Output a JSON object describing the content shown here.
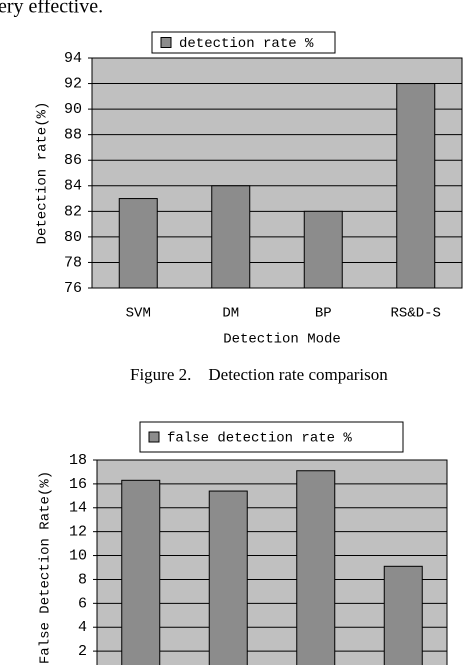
{
  "text_fragment": "ery effective.",
  "captions": [
    "Figure 2.    Detection rate comparison"
  ],
  "chart_data": [
    {
      "type": "bar",
      "xlabel": "Detection Mode",
      "ylabel": "Detection rate(%)",
      "categories": [
        "SVM",
        "DM",
        "BP",
        "RS&D-S"
      ],
      "series": [
        {
          "name": "detection rate %",
          "color": "#8c8c8c",
          "values": [
            83,
            84,
            82,
            92
          ]
        }
      ],
      "ylim": [
        76,
        94
      ],
      "yticks": [
        76,
        78,
        80,
        82,
        84,
        86,
        88,
        90,
        92,
        94
      ],
      "grid": true,
      "plot_background": "#c0c0c0"
    },
    {
      "type": "bar",
      "ylabel": "False Detection Rate(%)",
      "series": [
        {
          "name": "false detection rate %",
          "color": "#8c8c8c",
          "values": [
            16.3,
            15.4,
            17.1,
            9.1
          ]
        }
      ],
      "ylim": [
        0,
        18
      ],
      "yticks": [
        2,
        4,
        6,
        8,
        10,
        12,
        14,
        16,
        18
      ],
      "grid": true,
      "plot_background": "#c0c0c0"
    }
  ]
}
